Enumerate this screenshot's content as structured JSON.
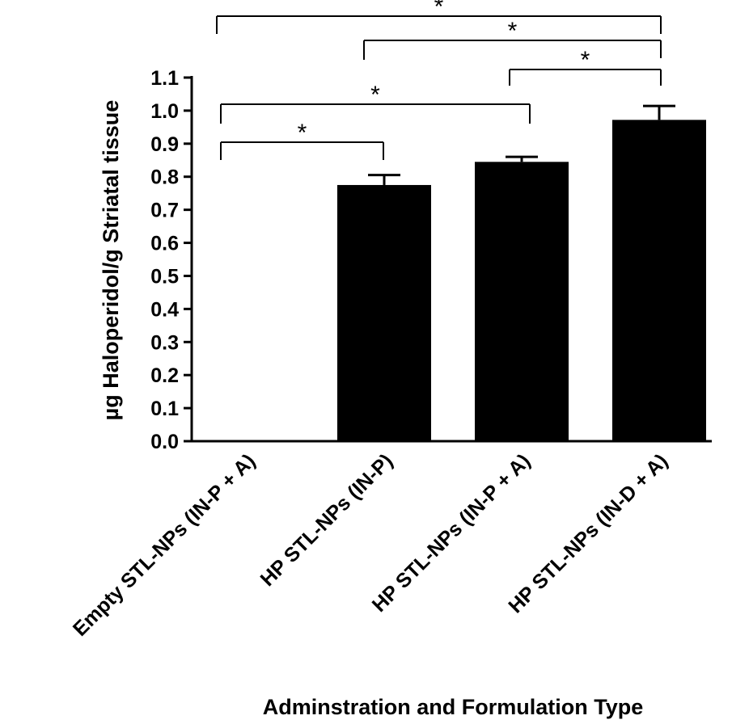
{
  "chart_data": {
    "type": "bar",
    "title": "",
    "xlabel": "Adminstration and Formulation Type",
    "ylabel": "µg Haloperidol/g Striatal tissue",
    "ylim": [
      0,
      1.1
    ],
    "yticks": [
      "0.0",
      "0.1",
      "0.2",
      "0.3",
      "0.4",
      "0.5",
      "0.6",
      "0.7",
      "0.8",
      "0.9",
      "1.0",
      "1.1"
    ],
    "categories": [
      "Empty STL-NPs (IN-P + A)",
      "HP STL-NPs (IN-P)",
      "HP STL-NPs (IN-P + A)",
      "HP STL-NPs (IN-D + A)"
    ],
    "values": [
      0.0,
      0.775,
      0.845,
      0.972
    ],
    "errors": [
      0.0,
      0.03,
      0.015,
      0.042
    ],
    "bar_color": "#000000",
    "significance": [
      {
        "from": 0,
        "to": 3,
        "label": "*"
      },
      {
        "from": 1,
        "to": 3,
        "label": "*"
      },
      {
        "from": 2,
        "to": 3,
        "label": "*"
      },
      {
        "from": 0,
        "to": 2,
        "label": "*"
      },
      {
        "from": 0,
        "to": 1,
        "label": "*"
      }
    ]
  }
}
